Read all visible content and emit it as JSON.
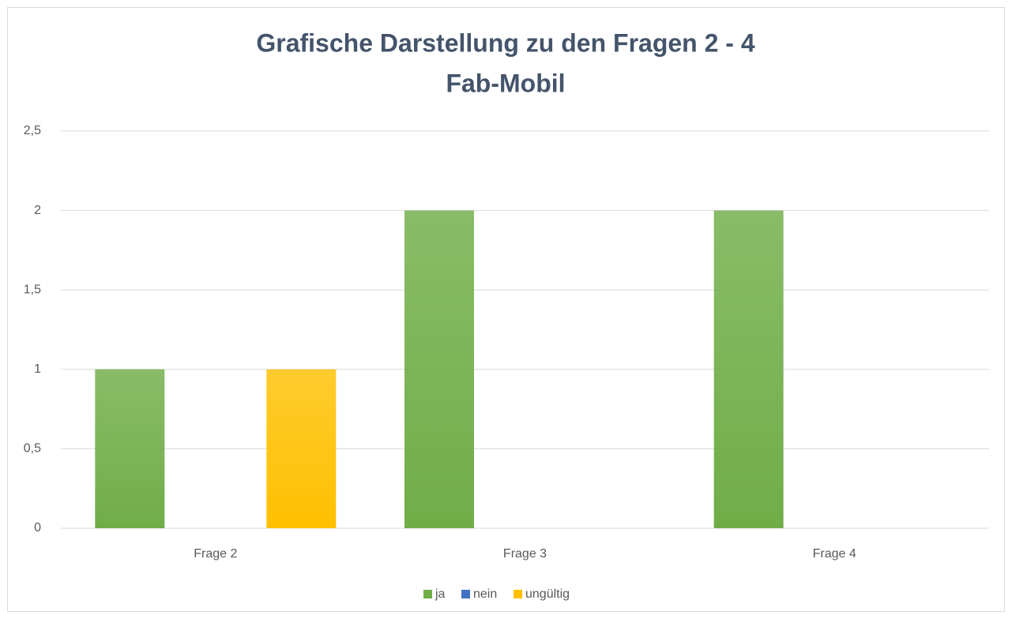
{
  "chart_data": {
    "type": "bar",
    "title": "Grafische Darstellung zu den Fragen 2 - 4",
    "subtitle": "Fab-Mobil",
    "categories": [
      "Frage 2",
      "Frage 3",
      "Frage 4"
    ],
    "series": [
      {
        "name": "ja",
        "color": "#70ad47",
        "values": [
          1,
          2,
          2
        ]
      },
      {
        "name": "nein",
        "color": "#4472c4",
        "values": [
          0,
          0,
          0
        ]
      },
      {
        "name": "ungültig",
        "color": "#ffc000",
        "values": [
          1,
          0,
          0
        ]
      }
    ],
    "ylim": [
      0,
      2.5
    ],
    "yticks": [
      0,
      {
        "value": 0.5,
        "label": "0,5"
      },
      1,
      {
        "value": 1.5,
        "label": "1,5"
      },
      2,
      {
        "value": 2.5,
        "label": "2,5"
      }
    ],
    "grid": true,
    "legend": "bottom"
  }
}
